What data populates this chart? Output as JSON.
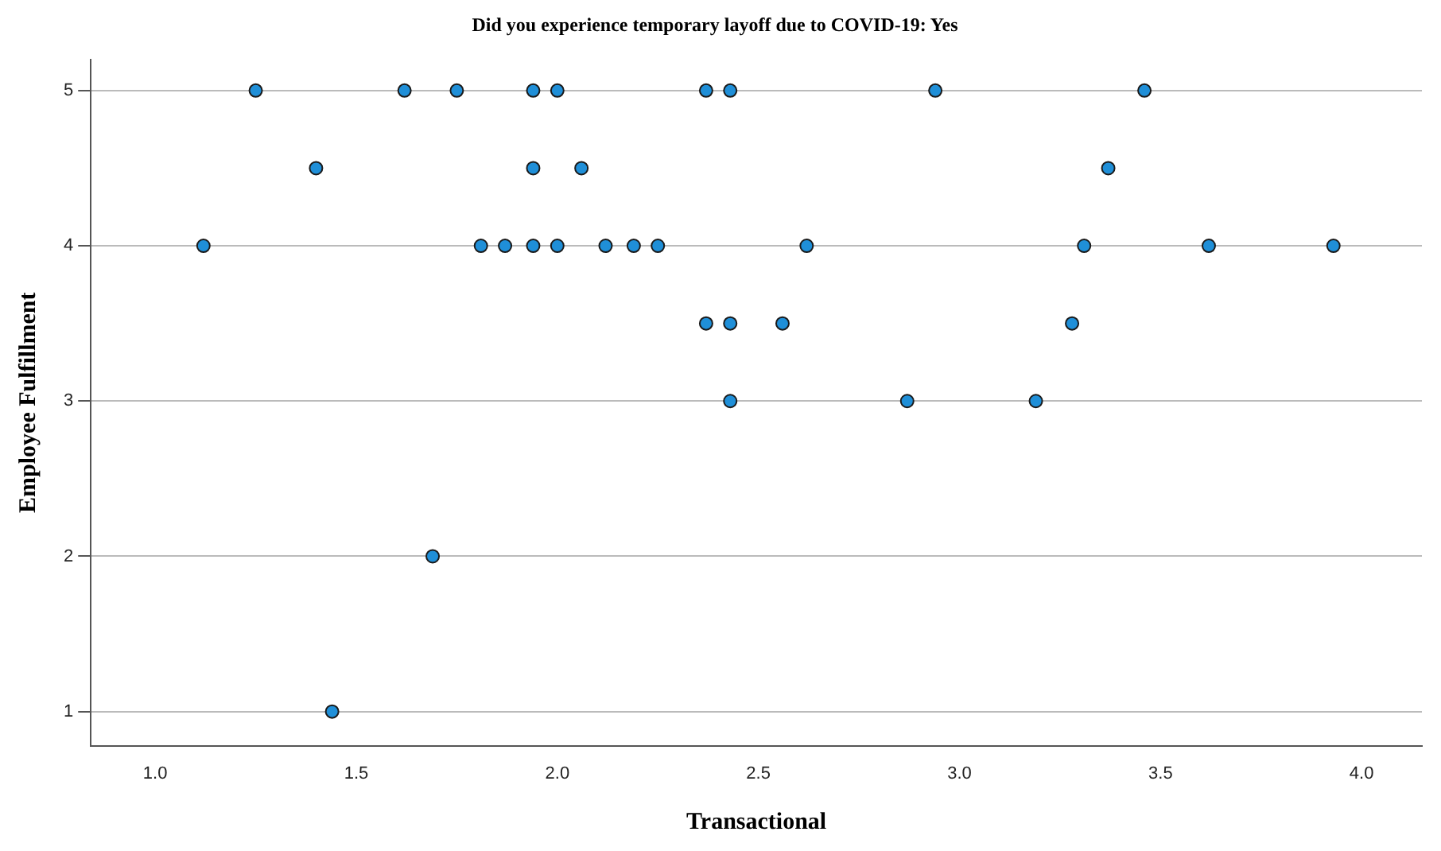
{
  "chart_data": {
    "type": "scatter",
    "title": "Did you experience temporary layoff due to COVID-19: Yes",
    "xlabel": "Transactional",
    "ylabel": "Employee Fulfillment",
    "series": [
      {
        "color": "#1f8fd8",
        "x": [
          1.25,
          1.62,
          1.75,
          1.94,
          2.0,
          2.37,
          2.43,
          2.94,
          3.46,
          1.4,
          1.94,
          2.06,
          3.37,
          1.12,
          1.81,
          1.87,
          1.94,
          2.0,
          2.12,
          2.19,
          2.25,
          2.62,
          3.31,
          3.62,
          3.93,
          2.37,
          2.43,
          2.56,
          3.28,
          2.43,
          2.87,
          3.19,
          1.69,
          1.44
        ],
        "values": [
          5,
          5,
          5,
          5,
          5,
          5,
          5,
          5,
          5,
          4.5,
          4.5,
          4.5,
          4.5,
          4,
          4,
          4,
          4,
          4,
          4,
          4,
          4,
          4,
          4,
          4,
          4,
          3.5,
          3.5,
          3.5,
          3.5,
          3,
          3,
          3,
          2,
          1
        ]
      }
    ],
    "xlim": [
      0.84,
      4.15
    ],
    "xticks": [
      {
        "value": 1,
        "label": "1.0"
      },
      {
        "value": 1.5,
        "label": "1.5"
      },
      {
        "value": 2,
        "label": "2.0"
      },
      {
        "value": 2.5,
        "label": "2.5"
      },
      {
        "value": 3,
        "label": "3.0"
      },
      {
        "value": 3.5,
        "label": "3.5"
      },
      {
        "value": 4,
        "label": "4.0"
      }
    ],
    "ylim": [
      0.78,
      5.2
    ],
    "yticks": [
      1,
      2,
      3,
      4,
      5
    ],
    "grid": "y",
    "marker": "circle",
    "legend": false
  }
}
